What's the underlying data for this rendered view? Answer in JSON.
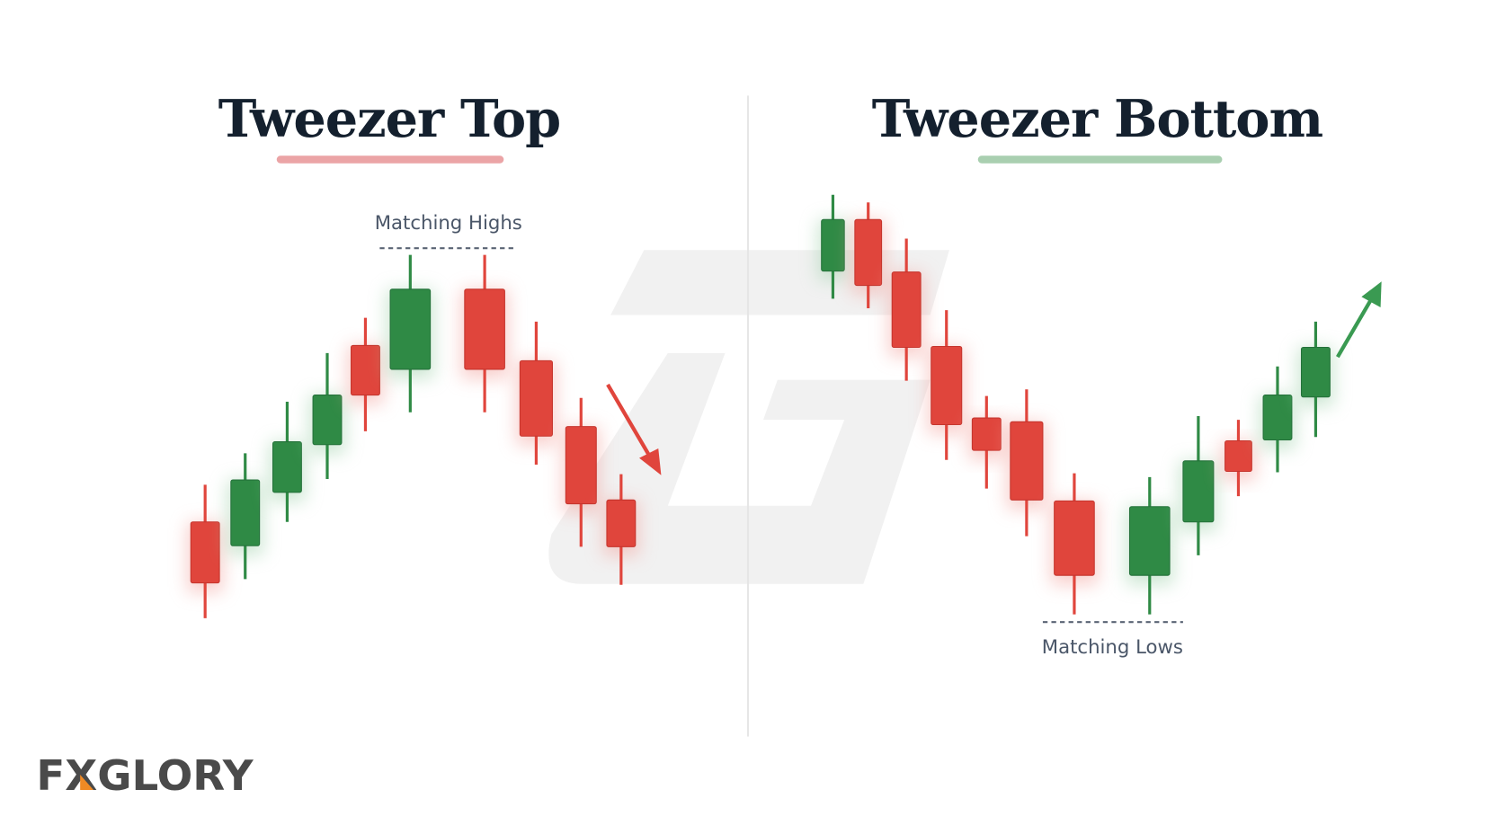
{
  "left": {
    "title": "Tweezer Top",
    "annotation": "Matching Highs"
  },
  "right": {
    "title": "Tweezer Bottom",
    "annotation": "Matching Lows"
  },
  "logo": "FXGLORY"
}
